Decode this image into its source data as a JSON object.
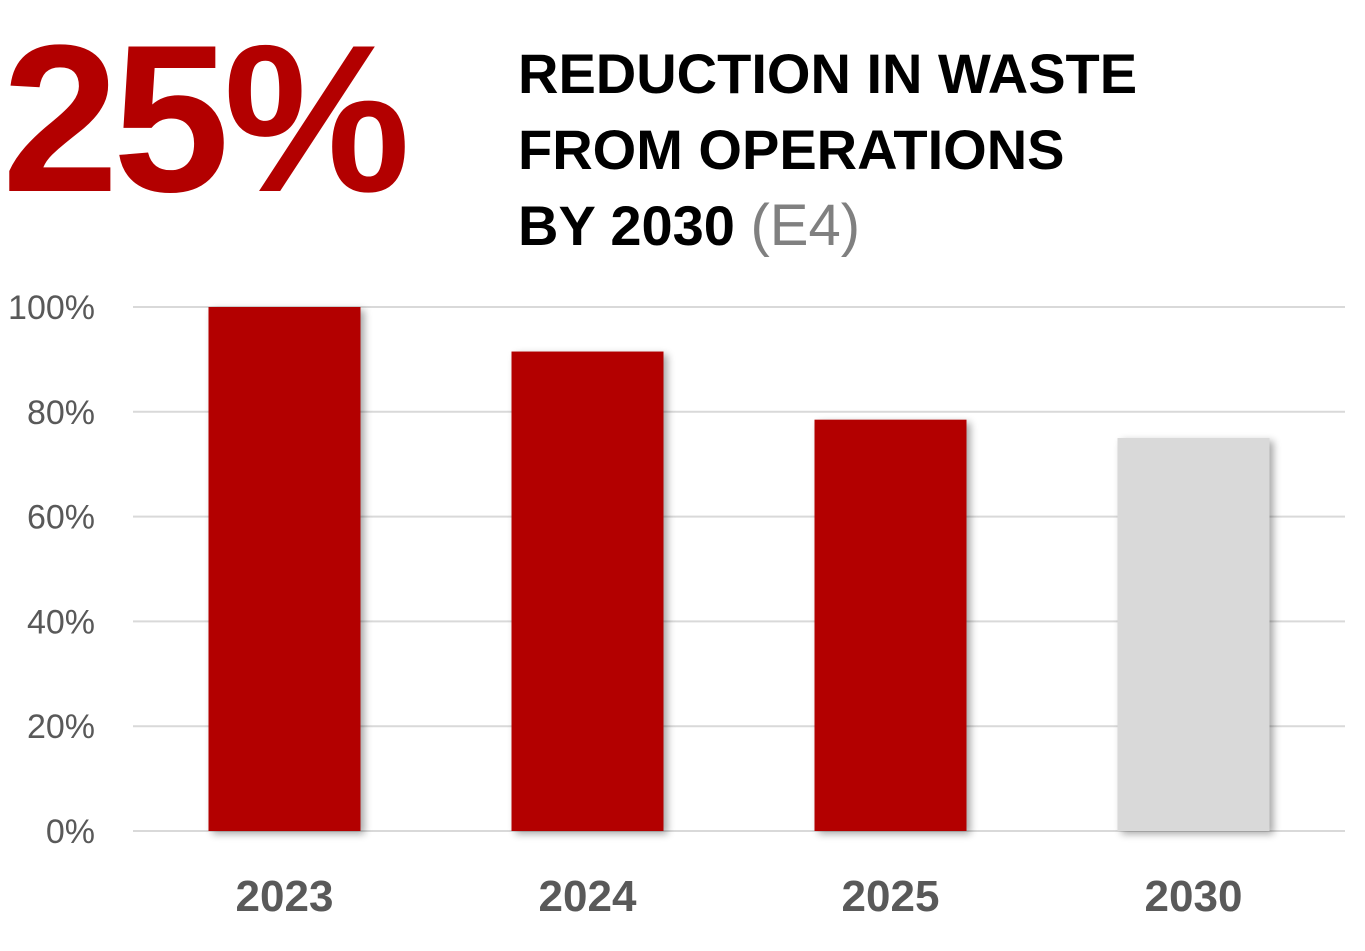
{
  "highlight": {
    "value": "25%",
    "color": "#b30000"
  },
  "headline": {
    "line1": "REDUCTION IN WASTE",
    "line2": "FROM OPERATIONS",
    "line3_main": "BY 2030",
    "line3_code": "(E4)"
  },
  "chart_data": {
    "type": "bar",
    "title": "",
    "xlabel": "",
    "ylabel": "",
    "categories": [
      "2023",
      "2024",
      "2025",
      "2030"
    ],
    "values": [
      100,
      91.5,
      78.5,
      75
    ],
    "bar_colors": [
      "#b30000",
      "#b30000",
      "#b30000",
      "#d9d9d9"
    ],
    "ylim": [
      0,
      100
    ],
    "yticks": [
      0,
      20,
      40,
      60,
      80,
      100
    ],
    "ytick_labels": [
      "0%",
      "20%",
      "40%",
      "60%",
      "80%",
      "100%"
    ],
    "grid": true,
    "legend": "none"
  }
}
